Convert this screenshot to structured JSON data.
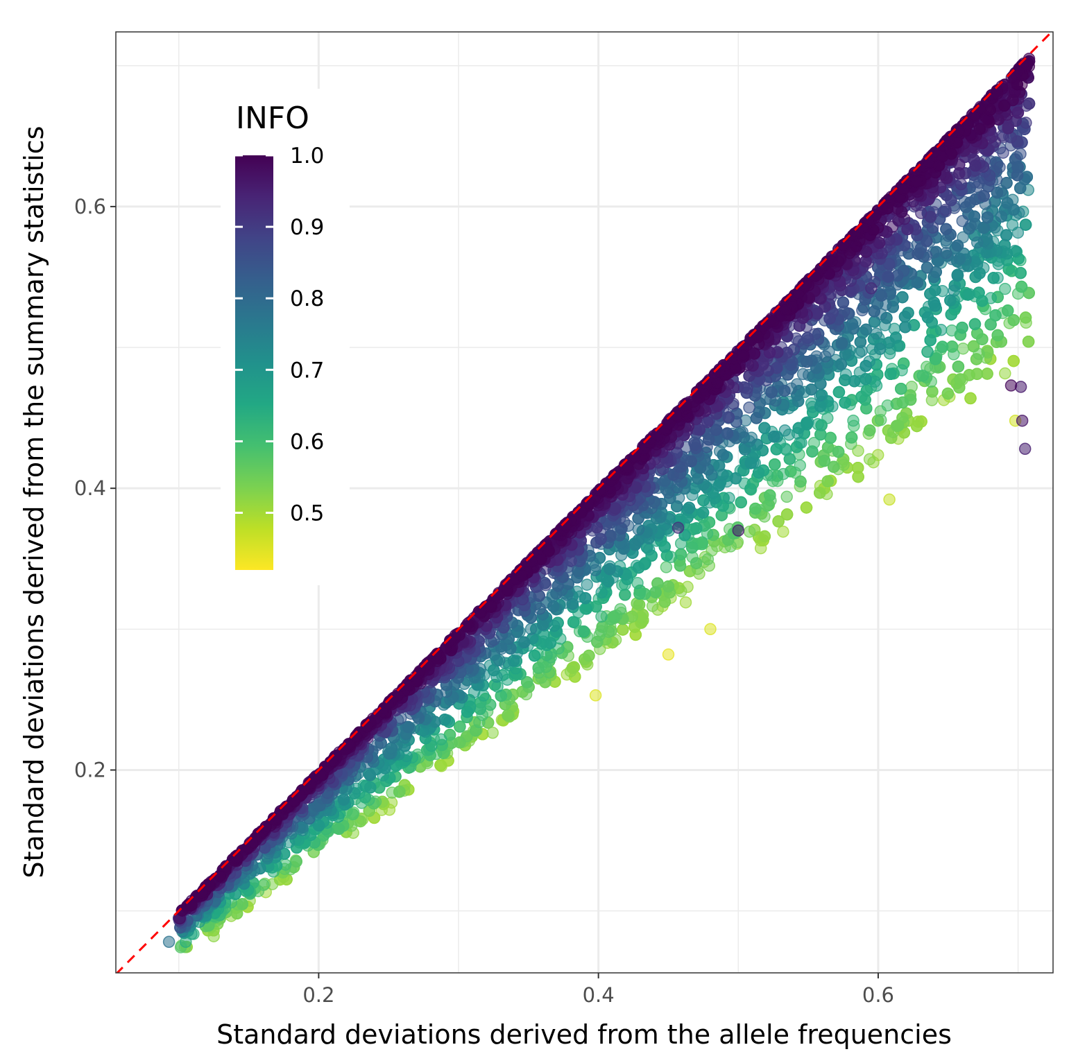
{
  "chart_data": {
    "type": "scatter",
    "xlabel": "Standard deviations derived from the allele frequencies",
    "ylabel": "Standard deviations derived from the summary statistics",
    "xlim": [
      0.055,
      0.725
    ],
    "ylim": [
      0.056,
      0.724
    ],
    "x_ticks": [
      0.2,
      0.4,
      0.6
    ],
    "x_tick_labels": [
      "0.2",
      "0.4",
      "0.6"
    ],
    "y_ticks": [
      0.2,
      0.4,
      0.6
    ],
    "y_tick_labels": [
      "0.2",
      "0.4",
      "0.6"
    ],
    "grid": true,
    "reference_line": {
      "style": "dashed",
      "color": "#ff0000",
      "slope": 1,
      "intercept": 0
    },
    "color_variable": "INFO",
    "colorscale": "viridis",
    "color_range": [
      0.42,
      1.0
    ],
    "legend": {
      "title": "INFO",
      "position": "top-left",
      "ticks": [
        1.0,
        0.9,
        0.8,
        0.7,
        0.6,
        0.5
      ],
      "tick_labels": [
        "1.0",
        "0.9",
        "0.8",
        "0.7",
        "0.6",
        "0.5"
      ]
    },
    "outlier_points": [
      {
        "x": 0.093,
        "y": 0.078,
        "info": 0.78
      },
      {
        "x": 0.105,
        "y": 0.078,
        "info": 0.64
      },
      {
        "x": 0.125,
        "y": 0.082,
        "info": 0.52
      },
      {
        "x": 0.398,
        "y": 0.253,
        "info": 0.45
      },
      {
        "x": 0.45,
        "y": 0.282,
        "info": 0.44
      },
      {
        "x": 0.608,
        "y": 0.392,
        "info": 0.47
      },
      {
        "x": 0.698,
        "y": 0.448,
        "info": 0.46
      },
      {
        "x": 0.705,
        "y": 0.428,
        "info": 0.95
      },
      {
        "x": 0.703,
        "y": 0.448,
        "info": 0.97
      },
      {
        "x": 0.702,
        "y": 0.472,
        "info": 0.96
      },
      {
        "x": 0.695,
        "y": 0.473,
        "info": 0.99
      },
      {
        "x": 0.58,
        "y": 0.555,
        "info": 0.94
      },
      {
        "x": 0.595,
        "y": 0.542,
        "info": 0.93
      },
      {
        "x": 0.48,
        "y": 0.3,
        "info": 0.45
      },
      {
        "x": 0.5,
        "y": 0.37,
        "info": 0.96
      },
      {
        "x": 0.457,
        "y": 0.372,
        "info": 0.92
      }
    ]
  }
}
